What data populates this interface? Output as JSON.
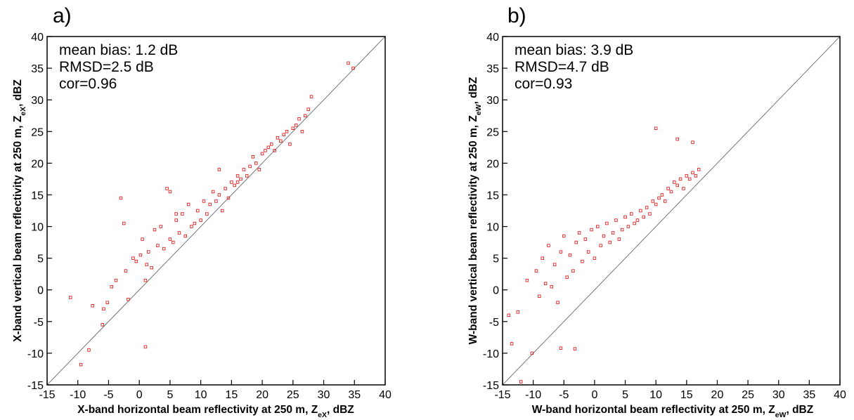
{
  "chart_data": [
    {
      "type": "scatter",
      "panel_label": "a)",
      "xlabel": "X-band horizontal beam reflectivity at 250 m, Z",
      "xlabel_sub": "eX",
      "xlabel_end": ", dBZ",
      "ylabel": "X-band vertical beam reflectivity at 250 m, Z",
      "ylabel_sub": "eX",
      "ylabel_end": ", dBZ",
      "xlim": [
        -15,
        40
      ],
      "ylim": [
        -15,
        40
      ],
      "xticks": [
        -15,
        -10,
        -5,
        0,
        5,
        10,
        15,
        20,
        25,
        30,
        35,
        40
      ],
      "yticks": [
        -15,
        -10,
        -5,
        0,
        5,
        10,
        15,
        20,
        25,
        30,
        35,
        40
      ],
      "grid": false,
      "reference_line": "one-to-one",
      "annotations": [
        "mean bias: 1.2 dB",
        "RMSD=2.5 dB",
        "cor=0.96"
      ],
      "marker_color": "#e02020",
      "series": [
        {
          "x": [
            -11.2,
            -9.5,
            -8.2,
            -7.6,
            -6.0,
            -5.8,
            -5.2,
            -4.5,
            -3.8,
            -3.0,
            -2.5,
            -2.2,
            -1.8,
            -1.0,
            -0.5,
            0.2,
            0.5,
            1.0,
            1.2,
            1.5,
            2.0,
            2.5,
            3.0,
            3.5,
            4.0,
            4.5,
            5.0,
            5.5,
            6.0,
            6.5,
            7.0,
            7.5,
            8.0,
            8.5,
            9.0,
            9.5,
            10.0,
            10.5,
            11.0,
            11.5,
            12.0,
            12.5,
            13.0,
            13.5,
            14.0,
            14.5,
            15.0,
            15.5,
            16.0,
            16.5,
            17.0,
            17.5,
            18.0,
            18.5,
            19.0,
            19.5,
            20.0,
            20.5,
            21.0,
            21.5,
            22.0,
            22.5,
            23.0,
            23.5,
            24.0,
            24.5,
            25.0,
            25.5,
            26.0,
            26.5,
            27.0,
            27.5,
            28.0,
            34.0,
            34.8,
            1.0,
            5.0,
            6.0,
            13.0,
            16.0
          ],
          "y": [
            -1.2,
            -11.8,
            -9.5,
            -2.5,
            -5.5,
            -3.0,
            -2.0,
            0.5,
            1.5,
            14.5,
            10.5,
            3.0,
            -1.5,
            5.0,
            4.5,
            5.5,
            8.0,
            1.5,
            4.0,
            6.0,
            3.5,
            9.5,
            7.0,
            10.0,
            6.5,
            16.0,
            8.0,
            7.5,
            11.0,
            9.0,
            12.0,
            8.5,
            13.5,
            10.0,
            10.5,
            12.5,
            11.0,
            14.0,
            12.0,
            13.5,
            15.5,
            14.0,
            15.0,
            12.5,
            16.0,
            14.5,
            17.0,
            16.5,
            18.0,
            17.5,
            19.0,
            18.0,
            19.5,
            21.0,
            20.0,
            19.0,
            21.5,
            22.0,
            22.5,
            23.0,
            22.0,
            24.0,
            23.5,
            24.5,
            25.0,
            23.0,
            25.5,
            26.0,
            27.0,
            25.0,
            27.5,
            28.5,
            30.5,
            35.8,
            35.0,
            -9.0,
            15.5,
            12.0,
            19.0,
            17.0
          ]
        }
      ]
    },
    {
      "type": "scatter",
      "panel_label": "b)",
      "xlabel": "W-band horizontal beam reflectivity at 250 m, Z",
      "xlabel_sub": "eW",
      "xlabel_end": ", dBZ",
      "ylabel": "W-band vertical beam reflectivity at 250 m, Z",
      "ylabel_sub": "eW",
      "ylabel_end": ", dBZ",
      "xlim": [
        -15,
        40
      ],
      "ylim": [
        -15,
        40
      ],
      "xticks": [
        -15,
        -10,
        -5,
        0,
        5,
        10,
        15,
        20,
        25,
        30,
        35,
        40
      ],
      "yticks": [
        -15,
        -10,
        -5,
        0,
        5,
        10,
        15,
        20,
        25,
        30,
        35,
        40
      ],
      "grid": false,
      "reference_line": "one-to-one",
      "annotations": [
        "mean bias: 3.9 dB",
        "RMSD=4.7 dB",
        "cor=0.93"
      ],
      "marker_color": "#e02020",
      "series": [
        {
          "x": [
            -14.0,
            -13.5,
            -12.5,
            -11.0,
            -10.2,
            -9.5,
            -9.0,
            -8.5,
            -8.0,
            -7.5,
            -7.0,
            -6.5,
            -6.0,
            -5.5,
            -5.0,
            -4.5,
            -4.0,
            -3.5,
            -3.0,
            -2.5,
            -2.0,
            -1.5,
            -1.0,
            -0.5,
            0.0,
            0.5,
            1.0,
            1.5,
            2.0,
            2.5,
            3.0,
            3.5,
            4.0,
            4.5,
            5.0,
            5.5,
            6.0,
            6.5,
            7.0,
            7.5,
            8.0,
            8.5,
            9.0,
            9.5,
            10.0,
            10.5,
            11.0,
            11.5,
            12.0,
            12.5,
            13.0,
            13.5,
            14.0,
            14.5,
            15.0,
            15.5,
            16.0,
            16.5,
            17.0,
            -5.5,
            -3.2,
            10.0,
            13.5,
            16.0,
            -12.0
          ],
          "y": [
            -4.0,
            -8.5,
            -3.5,
            1.5,
            -10.0,
            3.0,
            -1.0,
            5.0,
            1.0,
            7.0,
            0.5,
            4.0,
            -2.0,
            6.0,
            8.5,
            2.0,
            5.5,
            3.0,
            7.5,
            9.0,
            4.5,
            8.0,
            6.0,
            9.5,
            5.0,
            10.0,
            7.0,
            8.5,
            10.5,
            7.5,
            9.0,
            11.0,
            8.0,
            9.5,
            11.5,
            10.0,
            12.0,
            10.5,
            11.0,
            12.5,
            11.5,
            13.0,
            12.0,
            14.0,
            13.5,
            14.5,
            15.0,
            14.0,
            16.0,
            15.5,
            17.0,
            16.5,
            17.5,
            16.0,
            18.0,
            17.5,
            18.5,
            18.0,
            19.0,
            -9.2,
            -9.3,
            25.5,
            23.8,
            23.3,
            -14.5
          ]
        }
      ]
    }
  ]
}
